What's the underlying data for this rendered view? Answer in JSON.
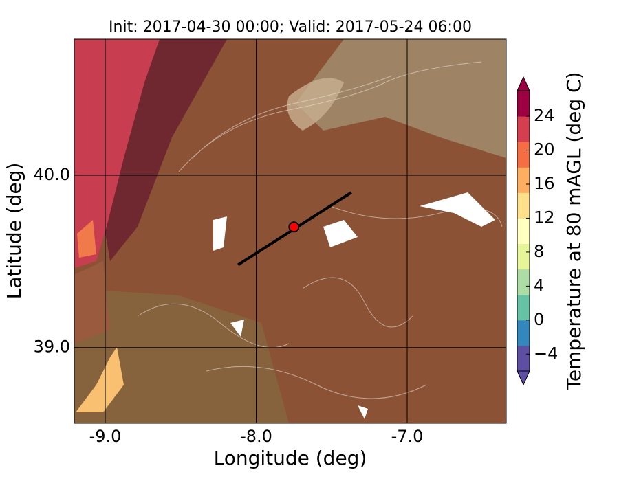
{
  "chart_data": {
    "type": "map",
    "title": "Init: 2017-04-30 00:00; Valid: 2017-05-24 06:00",
    "xlabel": "Longitude (deg)",
    "ylabel": "Latitude (deg)",
    "xlim": [
      -9.205,
      -6.344
    ],
    "ylim": [
      38.56,
      40.79
    ],
    "xticks": [
      {
        "value": -9.0,
        "label": "-9.0"
      },
      {
        "value": -8.0,
        "label": "-8.0"
      },
      {
        "value": -7.0,
        "label": "-7.0"
      }
    ],
    "yticks": [
      {
        "value": 39.0,
        "label": "39.0"
      },
      {
        "value": 40.0,
        "label": "40.0"
      }
    ],
    "grid": true,
    "transect": {
      "lon": [
        -8.12,
        -7.37
      ],
      "lat": [
        39.48,
        39.9
      ],
      "color": "#000000"
    },
    "marker": {
      "lon": -7.75,
      "lat": 39.7,
      "color": "#ff0000"
    },
    "colorbar": {
      "label": "Temperature at 80 mAGL (deg C)",
      "lim": [
        -6,
        27
      ],
      "ticks": [
        {
          "value": -4,
          "label": "−4"
        },
        0,
        4,
        8,
        12,
        16,
        20,
        24
      ],
      "colors": [
        "#5e4fa2",
        "#3288bd",
        "#66c2a5",
        "#abdda4",
        "#e6f598",
        "#ffffbf",
        "#fee08b",
        "#fdae61",
        "#f46d43",
        "#d53e4f",
        "#9e0142"
      ]
    }
  }
}
